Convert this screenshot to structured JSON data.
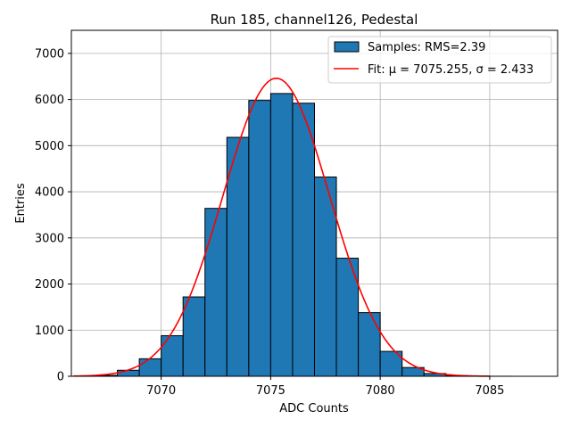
{
  "chart_data": {
    "type": "bar",
    "title": "Run 185, channel126, Pedestal",
    "xlabel": "ADC Counts",
    "ylabel": "Entries",
    "xlim": [
      7065.9,
      7088.1
    ],
    "ylim": [
      0,
      7500
    ],
    "xticks": [
      7070,
      7075,
      7080,
      7085
    ],
    "yticks": [
      0,
      1000,
      2000,
      3000,
      4000,
      5000,
      6000,
      7000
    ],
    "grid": true,
    "legend_position": "top-right",
    "histogram": {
      "name": "Samples: RMS=2.39",
      "color": "#1f77b4",
      "bin_width": 1,
      "bin_starts": [
        7066,
        7067,
        7068,
        7069,
        7070,
        7071,
        7072,
        7073,
        7074,
        7075,
        7076,
        7077,
        7078,
        7079,
        7080,
        7081,
        7082,
        7083,
        7084,
        7085,
        7086
      ],
      "values": [
        5,
        20,
        130,
        380,
        880,
        1720,
        3640,
        5180,
        5980,
        6130,
        5920,
        4320,
        2560,
        1380,
        540,
        190,
        60,
        15,
        4,
        1,
        0
      ]
    },
    "fit": {
      "name": "Fit: μ = 7075.255, σ = 2.433",
      "color": "#ff0000",
      "mu": 7075.255,
      "sigma": 2.433,
      "amplitude": 6460,
      "x_range": [
        7066,
        7085
      ]
    }
  }
}
